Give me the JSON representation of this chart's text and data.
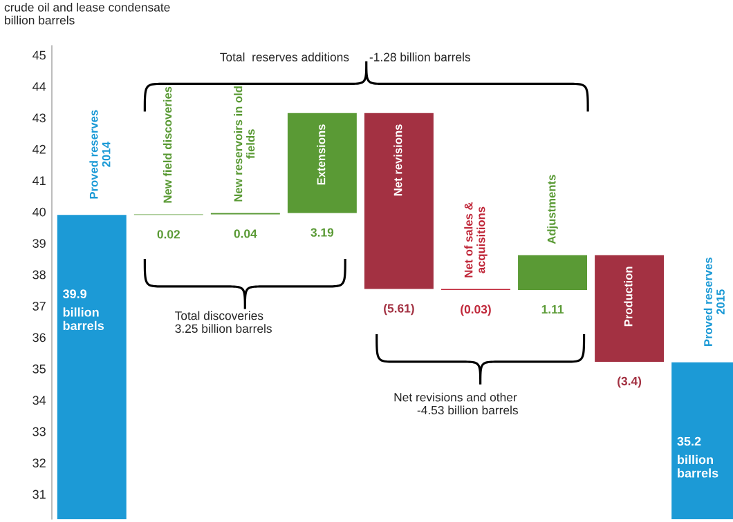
{
  "chart_data": {
    "type": "bar",
    "ylabel": "crude oil and lease condensate\nbillion barrels",
    "categories": [
      "Proved reserves\n2014",
      "New field discoveries",
      "New reservoirs in old\nfields",
      "Extensions",
      "Net revisions",
      "Net of sales &\nacquisitions",
      "Adjustments",
      "Production",
      "Proved reserves\n2015"
    ],
    "values": [
      39.9,
      0.02,
      0.04,
      3.19,
      -5.61,
      -0.03,
      1.11,
      -3.4,
      35.2
    ],
    "base": [
      null,
      39.9,
      39.92,
      39.96,
      43.15,
      37.54,
      37.51,
      38.62,
      null
    ],
    "colors": [
      "#1c9ad6",
      "#5a9a35",
      "#5a9a35",
      "#5a9a35",
      "#a33142",
      "#c0283a",
      "#5a9a35",
      "#a33142",
      "#1c9ad6"
    ],
    "value_labels": [
      "39.9",
      "0.02",
      "0.04",
      "3.19",
      "(5.61)",
      "(0.03)",
      "1.11",
      "(3.4)",
      "35.2"
    ],
    "ylim": [
      30.2,
      45.3
    ],
    "yticks": [
      31,
      32,
      33,
      34,
      35,
      36,
      37,
      38,
      39,
      40,
      41,
      42,
      43,
      44,
      45
    ],
    "annotations": [
      "Total  reserves additions      -1.28 billion barrels",
      "Total discoveries\n3.25 billion barrels",
      "Net revisions and other\n       -4.53 billion barrels",
      "billion\nbarrels",
      "billion\nbarrels"
    ],
    "grid": false,
    "legend": false,
    "tick_labels": "y"
  }
}
